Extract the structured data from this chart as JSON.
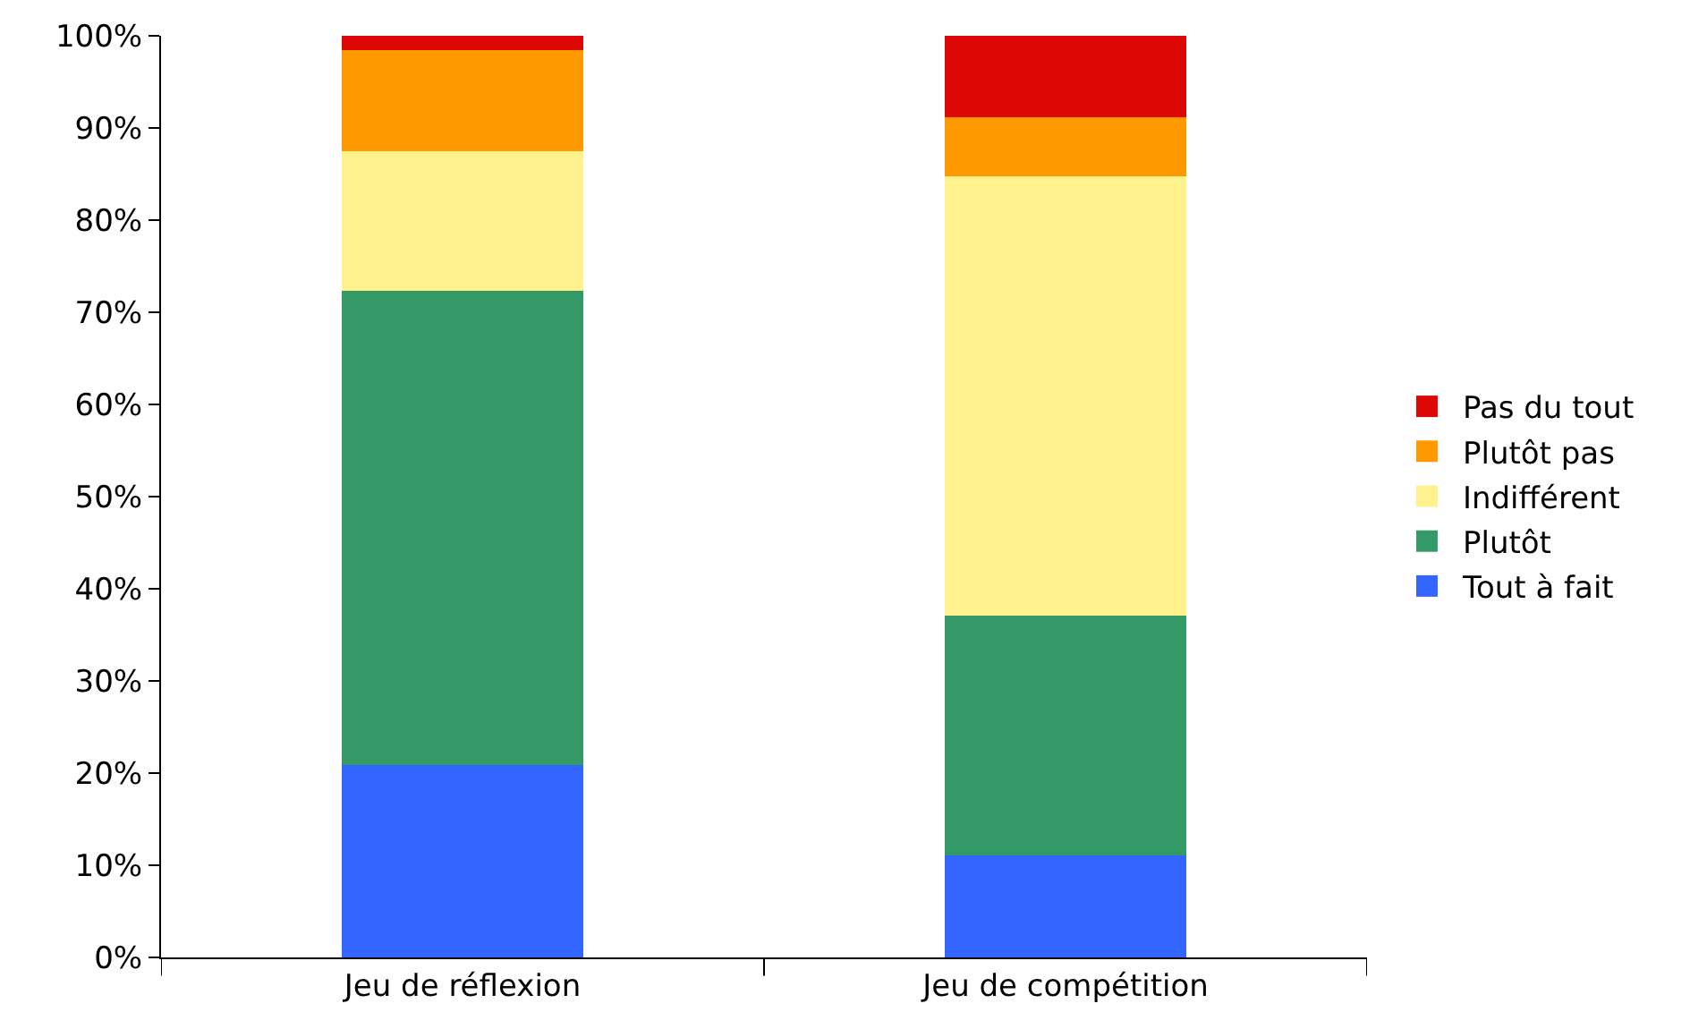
{
  "chart_data": {
    "type": "bar",
    "stacked": true,
    "categories": [
      "Jeu de réflexion",
      "Jeu de compétition"
    ],
    "ylim": [
      0,
      100
    ],
    "yticks": [
      {
        "value": 0,
        "label": "0%"
      },
      {
        "value": 10,
        "label": "10%"
      },
      {
        "value": 20,
        "label": "20%"
      },
      {
        "value": 30,
        "label": "30%"
      },
      {
        "value": 40,
        "label": "40%"
      },
      {
        "value": 50,
        "label": "50%"
      },
      {
        "value": 60,
        "label": "60%"
      },
      {
        "value": 70,
        "label": "70%"
      },
      {
        "value": 80,
        "label": "80%"
      },
      {
        "value": 90,
        "label": "90%"
      },
      {
        "value": 100,
        "label": "100%"
      }
    ],
    "legend": "right",
    "series": [
      {
        "name": "Tout à fait",
        "color": "#3366ff",
        "values": [
          20.9,
          11.1
        ]
      },
      {
        "name": "Plutôt",
        "color": "#339966",
        "values": [
          51.4,
          26.0
        ]
      },
      {
        "name": "Indifférent",
        "color": "#fff28c",
        "values": [
          15.2,
          47.7
        ]
      },
      {
        "name": "Plutôt pas",
        "color": "#ff9900",
        "values": [
          10.9,
          6.4
        ]
      },
      {
        "name": "Pas du tout",
        "color": "#dd0806",
        "values": [
          1.6,
          8.8
        ]
      }
    ]
  }
}
